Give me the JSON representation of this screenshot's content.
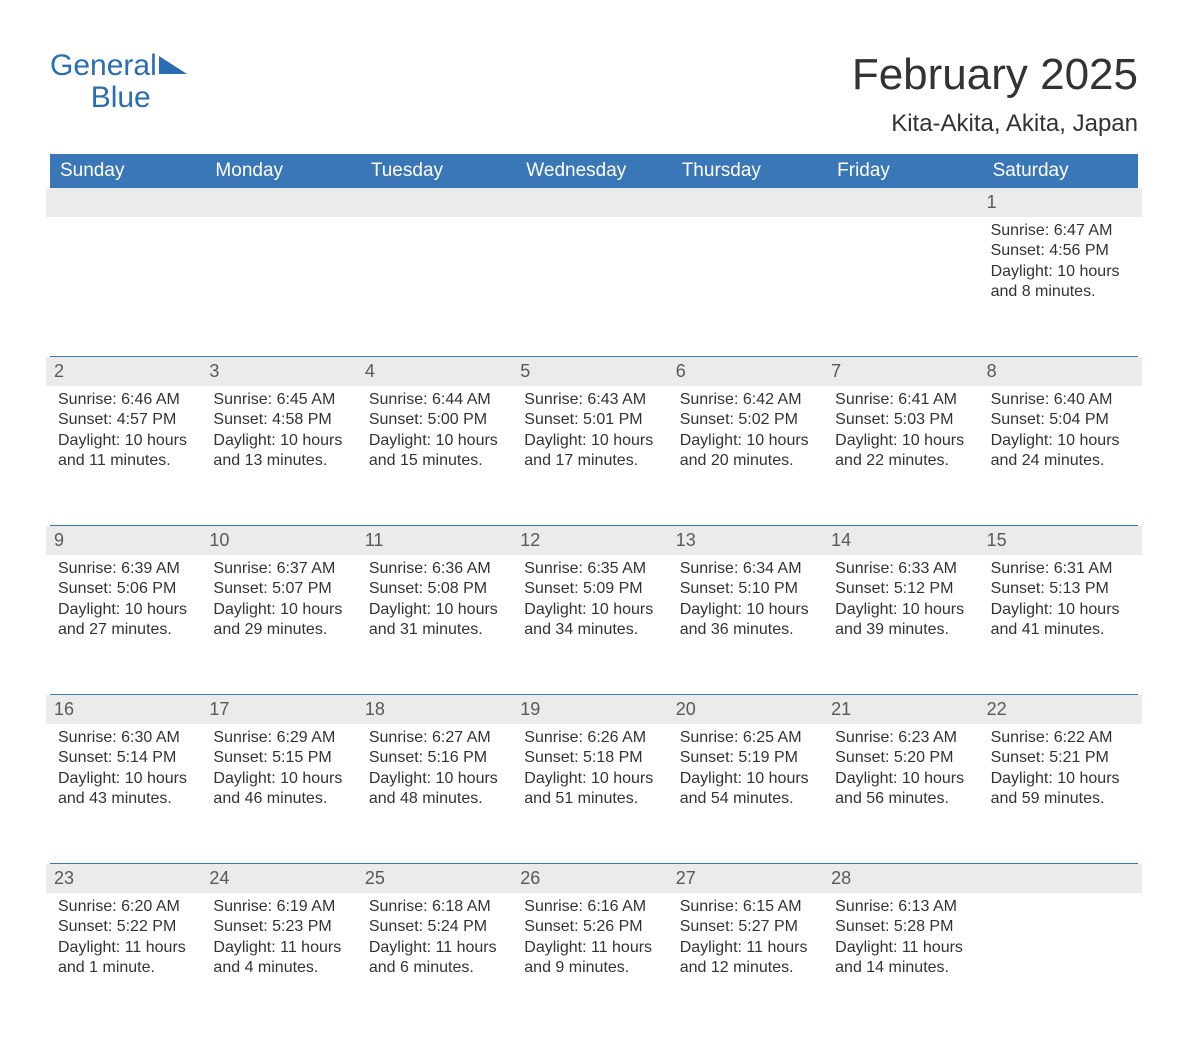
{
  "logo": {
    "word1": "General",
    "word2": "Blue"
  },
  "title": "February 2025",
  "location": "Kita-Akita, Akita, Japan",
  "weekdays": [
    "Sunday",
    "Monday",
    "Tuesday",
    "Wednesday",
    "Thursday",
    "Friday",
    "Saturday"
  ],
  "colors": {
    "header_bg": "#3a77b7",
    "daynum_bg": "#ebebeb",
    "brand": "#2a6db5",
    "text": "#333333"
  },
  "weeks": [
    [
      {
        "day": "",
        "sunrise": "",
        "sunset": "",
        "daylight": ""
      },
      {
        "day": "",
        "sunrise": "",
        "sunset": "",
        "daylight": ""
      },
      {
        "day": "",
        "sunrise": "",
        "sunset": "",
        "daylight": ""
      },
      {
        "day": "",
        "sunrise": "",
        "sunset": "",
        "daylight": ""
      },
      {
        "day": "",
        "sunrise": "",
        "sunset": "",
        "daylight": ""
      },
      {
        "day": "",
        "sunrise": "",
        "sunset": "",
        "daylight": ""
      },
      {
        "day": "1",
        "sunrise": "Sunrise: 6:47 AM",
        "sunset": "Sunset: 4:56 PM",
        "daylight": "Daylight: 10 hours and 8 minutes."
      }
    ],
    [
      {
        "day": "2",
        "sunrise": "Sunrise: 6:46 AM",
        "sunset": "Sunset: 4:57 PM",
        "daylight": "Daylight: 10 hours and 11 minutes."
      },
      {
        "day": "3",
        "sunrise": "Sunrise: 6:45 AM",
        "sunset": "Sunset: 4:58 PM",
        "daylight": "Daylight: 10 hours and 13 minutes."
      },
      {
        "day": "4",
        "sunrise": "Sunrise: 6:44 AM",
        "sunset": "Sunset: 5:00 PM",
        "daylight": "Daylight: 10 hours and 15 minutes."
      },
      {
        "day": "5",
        "sunrise": "Sunrise: 6:43 AM",
        "sunset": "Sunset: 5:01 PM",
        "daylight": "Daylight: 10 hours and 17 minutes."
      },
      {
        "day": "6",
        "sunrise": "Sunrise: 6:42 AM",
        "sunset": "Sunset: 5:02 PM",
        "daylight": "Daylight: 10 hours and 20 minutes."
      },
      {
        "day": "7",
        "sunrise": "Sunrise: 6:41 AM",
        "sunset": "Sunset: 5:03 PM",
        "daylight": "Daylight: 10 hours and 22 minutes."
      },
      {
        "day": "8",
        "sunrise": "Sunrise: 6:40 AM",
        "sunset": "Sunset: 5:04 PM",
        "daylight": "Daylight: 10 hours and 24 minutes."
      }
    ],
    [
      {
        "day": "9",
        "sunrise": "Sunrise: 6:39 AM",
        "sunset": "Sunset: 5:06 PM",
        "daylight": "Daylight: 10 hours and 27 minutes."
      },
      {
        "day": "10",
        "sunrise": "Sunrise: 6:37 AM",
        "sunset": "Sunset: 5:07 PM",
        "daylight": "Daylight: 10 hours and 29 minutes."
      },
      {
        "day": "11",
        "sunrise": "Sunrise: 6:36 AM",
        "sunset": "Sunset: 5:08 PM",
        "daylight": "Daylight: 10 hours and 31 minutes."
      },
      {
        "day": "12",
        "sunrise": "Sunrise: 6:35 AM",
        "sunset": "Sunset: 5:09 PM",
        "daylight": "Daylight: 10 hours and 34 minutes."
      },
      {
        "day": "13",
        "sunrise": "Sunrise: 6:34 AM",
        "sunset": "Sunset: 5:10 PM",
        "daylight": "Daylight: 10 hours and 36 minutes."
      },
      {
        "day": "14",
        "sunrise": "Sunrise: 6:33 AM",
        "sunset": "Sunset: 5:12 PM",
        "daylight": "Daylight: 10 hours and 39 minutes."
      },
      {
        "day": "15",
        "sunrise": "Sunrise: 6:31 AM",
        "sunset": "Sunset: 5:13 PM",
        "daylight": "Daylight: 10 hours and 41 minutes."
      }
    ],
    [
      {
        "day": "16",
        "sunrise": "Sunrise: 6:30 AM",
        "sunset": "Sunset: 5:14 PM",
        "daylight": "Daylight: 10 hours and 43 minutes."
      },
      {
        "day": "17",
        "sunrise": "Sunrise: 6:29 AM",
        "sunset": "Sunset: 5:15 PM",
        "daylight": "Daylight: 10 hours and 46 minutes."
      },
      {
        "day": "18",
        "sunrise": "Sunrise: 6:27 AM",
        "sunset": "Sunset: 5:16 PM",
        "daylight": "Daylight: 10 hours and 48 minutes."
      },
      {
        "day": "19",
        "sunrise": "Sunrise: 6:26 AM",
        "sunset": "Sunset: 5:18 PM",
        "daylight": "Daylight: 10 hours and 51 minutes."
      },
      {
        "day": "20",
        "sunrise": "Sunrise: 6:25 AM",
        "sunset": "Sunset: 5:19 PM",
        "daylight": "Daylight: 10 hours and 54 minutes."
      },
      {
        "day": "21",
        "sunrise": "Sunrise: 6:23 AM",
        "sunset": "Sunset: 5:20 PM",
        "daylight": "Daylight: 10 hours and 56 minutes."
      },
      {
        "day": "22",
        "sunrise": "Sunrise: 6:22 AM",
        "sunset": "Sunset: 5:21 PM",
        "daylight": "Daylight: 10 hours and 59 minutes."
      }
    ],
    [
      {
        "day": "23",
        "sunrise": "Sunrise: 6:20 AM",
        "sunset": "Sunset: 5:22 PM",
        "daylight": "Daylight: 11 hours and 1 minute."
      },
      {
        "day": "24",
        "sunrise": "Sunrise: 6:19 AM",
        "sunset": "Sunset: 5:23 PM",
        "daylight": "Daylight: 11 hours and 4 minutes."
      },
      {
        "day": "25",
        "sunrise": "Sunrise: 6:18 AM",
        "sunset": "Sunset: 5:24 PM",
        "daylight": "Daylight: 11 hours and 6 minutes."
      },
      {
        "day": "26",
        "sunrise": "Sunrise: 6:16 AM",
        "sunset": "Sunset: 5:26 PM",
        "daylight": "Daylight: 11 hours and 9 minutes."
      },
      {
        "day": "27",
        "sunrise": "Sunrise: 6:15 AM",
        "sunset": "Sunset: 5:27 PM",
        "daylight": "Daylight: 11 hours and 12 minutes."
      },
      {
        "day": "28",
        "sunrise": "Sunrise: 6:13 AM",
        "sunset": "Sunset: 5:28 PM",
        "daylight": "Daylight: 11 hours and 14 minutes."
      },
      {
        "day": "",
        "sunrise": "",
        "sunset": "",
        "daylight": ""
      }
    ]
  ]
}
